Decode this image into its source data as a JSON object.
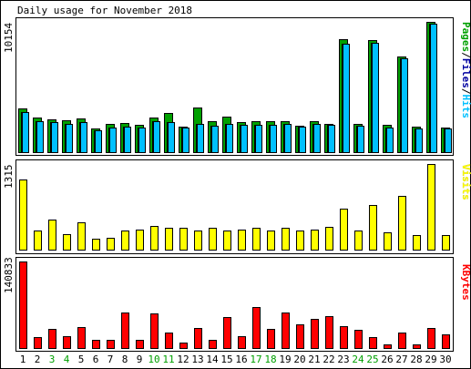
{
  "title": "Daily usage for November 2018",
  "colors": {
    "pages": "#00a000",
    "files": "#0000a0",
    "hits": "#00c0ff",
    "visits": "#ffff00",
    "kbytes": "#ff0000",
    "weekend_label": "#00a000",
    "weekday_label": "#000000",
    "outline": "#000000"
  },
  "chart_data": [
    {
      "type": "bar",
      "name": "hits-pages-files",
      "legend": "Pages/Files/Hits",
      "legend_parts": [
        "Pages",
        "/",
        "Files",
        "/",
        "Hits"
      ],
      "ymax_label": "10154",
      "ymax": 10154,
      "categories": [
        "1",
        "2",
        "3",
        "4",
        "5",
        "6",
        "7",
        "8",
        "9",
        "10",
        "11",
        "12",
        "13",
        "14",
        "15",
        "16",
        "17",
        "18",
        "19",
        "20",
        "21",
        "22",
        "23",
        "24",
        "25",
        "26",
        "27",
        "28",
        "29",
        "30"
      ],
      "series": [
        {
          "name": "Pages",
          "values": [
            3400,
            2700,
            2600,
            2500,
            2650,
            1900,
            2200,
            2300,
            2150,
            2700,
            3050,
            2000,
            3500,
            2400,
            2750,
            2350,
            2400,
            2450,
            2450,
            2100,
            2450,
            2200,
            8700,
            2250,
            8600,
            2150,
            7400,
            2000,
            10000,
            1950
          ]
        },
        {
          "name": "Files",
          "values": [
            3100,
            2450,
            2350,
            2250,
            2350,
            1750,
            1950,
            2050,
            1950,
            2450,
            2350,
            1950,
            2250,
            2100,
            2200,
            2150,
            2150,
            2150,
            2200,
            2000,
            2250,
            2150,
            8350,
            2100,
            8400,
            1950,
            7250,
            1900,
            9850,
            1850
          ]
        },
        {
          "name": "Hits",
          "values": [
            3100,
            2450,
            2350,
            2250,
            2350,
            1750,
            1950,
            2050,
            1950,
            2450,
            2350,
            1950,
            2250,
            2100,
            2200,
            2150,
            2150,
            2150,
            2200,
            2000,
            2250,
            2150,
            8350,
            2100,
            8400,
            1950,
            7250,
            1900,
            9850,
            1850
          ]
        }
      ]
    },
    {
      "type": "bar",
      "name": "visits",
      "legend": "Visits",
      "ymax_label": "1315",
      "ymax": 1315,
      "categories": [
        "1",
        "2",
        "3",
        "4",
        "5",
        "6",
        "7",
        "8",
        "9",
        "10",
        "11",
        "12",
        "13",
        "14",
        "15",
        "16",
        "17",
        "18",
        "19",
        "20",
        "21",
        "22",
        "23",
        "24",
        "25",
        "26",
        "27",
        "28",
        "29",
        "30"
      ],
      "series": [
        {
          "name": "Visits",
          "values": [
            1080,
            300,
            470,
            250,
            430,
            185,
            200,
            300,
            320,
            380,
            340,
            340,
            310,
            340,
            300,
            320,
            350,
            300,
            340,
            310,
            320,
            360,
            630,
            300,
            690,
            270,
            830,
            240,
            1315,
            240
          ]
        }
      ]
    },
    {
      "type": "bar",
      "name": "kbytes",
      "legend": "KBytes",
      "ymax_label": "140833",
      "ymax": 140833,
      "categories": [
        "1",
        "2",
        "3",
        "4",
        "5",
        "6",
        "7",
        "8",
        "9",
        "10",
        "11",
        "12",
        "13",
        "14",
        "15",
        "16",
        "17",
        "18",
        "19",
        "20",
        "21",
        "22",
        "23",
        "24",
        "25",
        "26",
        "27",
        "28",
        "29",
        "30"
      ],
      "series": [
        {
          "name": "KBytes",
          "values": [
            140833,
            19000,
            33000,
            21000,
            35000,
            14000,
            15000,
            58000,
            14000,
            57000,
            26000,
            11000,
            34000,
            15000,
            51000,
            21000,
            67000,
            33000,
            58000,
            40000,
            49000,
            53000,
            37000,
            31000,
            19000,
            8000,
            26000,
            7000,
            34000,
            24000
          ]
        }
      ]
    }
  ],
  "weekend_days": [
    "3",
    "4",
    "10",
    "11",
    "17",
    "18",
    "24",
    "25"
  ]
}
